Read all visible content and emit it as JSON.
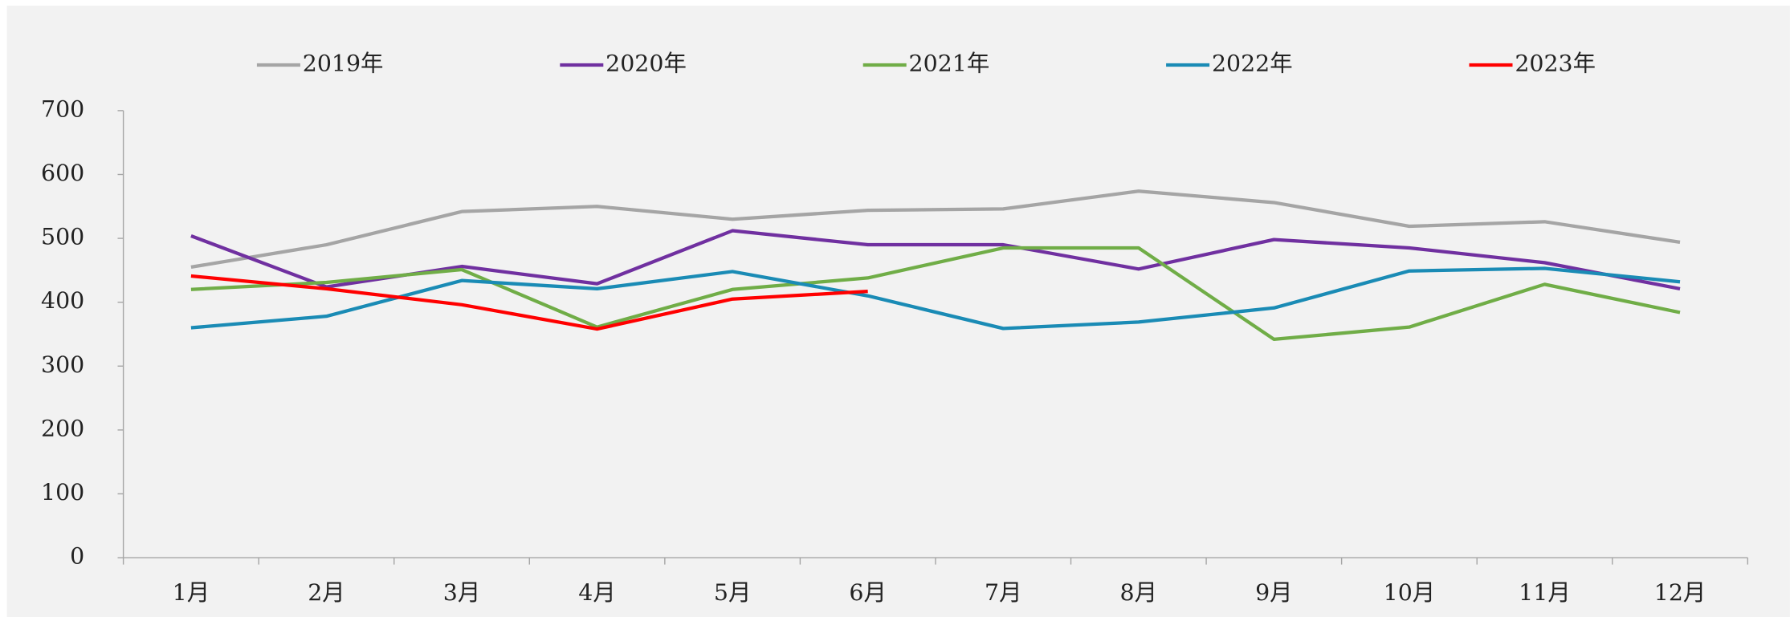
{
  "chart_data": {
    "type": "line",
    "categories": [
      "1月",
      "2月",
      "3月",
      "4月",
      "5月",
      "6月",
      "7月",
      "8月",
      "9月",
      "10月",
      "11月",
      "12月"
    ],
    "series": [
      {
        "name": "2019年",
        "color": "#a5a5a5",
        "values": [
          455,
          490,
          542,
          550,
          530,
          544,
          546,
          574,
          556,
          519,
          526,
          494
        ]
      },
      {
        "name": "2020年",
        "color": "#7030a0",
        "values": [
          504,
          424,
          456,
          429,
          512,
          490,
          490,
          452,
          498,
          485,
          462,
          421
        ]
      },
      {
        "name": "2021年",
        "color": "#70ad47",
        "values": [
          420,
          431,
          451,
          361,
          420,
          438,
          485,
          485,
          342,
          361,
          428,
          384
        ]
      },
      {
        "name": "2022年",
        "color": "#1a8bb5",
        "values": [
          360,
          378,
          434,
          421,
          448,
          410,
          359,
          369,
          391,
          449,
          453,
          432
        ]
      },
      {
        "name": "2023年",
        "color": "#ff0000",
        "values": [
          441,
          421,
          396,
          358,
          405,
          417,
          null,
          null,
          null,
          null,
          null,
          null
        ]
      }
    ],
    "ylim": [
      0,
      700
    ],
    "yticks": [
      0,
      100,
      200,
      300,
      400,
      500,
      600,
      700
    ],
    "grid": false,
    "legend": "top"
  }
}
